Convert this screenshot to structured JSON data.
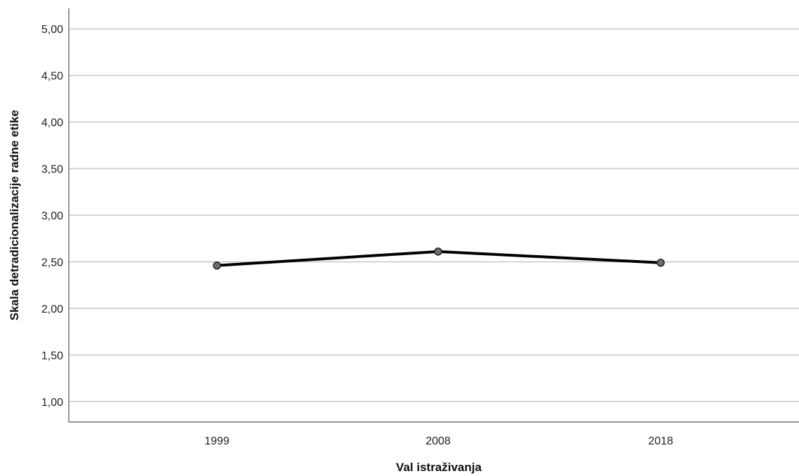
{
  "chart_data": {
    "type": "line",
    "title": "",
    "xlabel": "Val istraživanja",
    "ylabel": "Skala detradicionalizacije radne etike",
    "categories": [
      "1999",
      "2008",
      "2018"
    ],
    "series": [
      {
        "values": [
          2.46,
          2.61,
          2.49
        ]
      }
    ],
    "ylim": [
      0.78,
      5.22
    ],
    "yticks": [
      1.0,
      1.5,
      2.0,
      2.5,
      3.0,
      3.5,
      4.0,
      4.5,
      5.0
    ],
    "ytick_labels": [
      "1,00",
      "1,50",
      "2,00",
      "2,50",
      "3,00",
      "3,50",
      "4,00",
      "4,50",
      "5,00"
    ],
    "grid": "horizontal",
    "legend": "none",
    "colors": {
      "line": "#000000",
      "marker_fill": "#6e6e6e",
      "grid": "#c8c8c8",
      "axis": "#555555"
    }
  }
}
